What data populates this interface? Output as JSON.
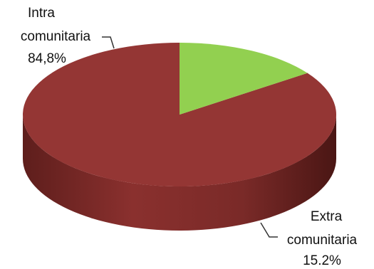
{
  "chart_data": {
    "type": "pie",
    "title": "",
    "slices": [
      {
        "name_lines": [
          "Intra",
          "comunitaria"
        ],
        "value": 84.8,
        "label": "84,8%",
        "color": "#943634",
        "side_color": "#7A2A28"
      },
      {
        "name_lines": [
          "Extra",
          "comunitaria"
        ],
        "value": 15.2,
        "label": "15.2%",
        "color": "#92D050",
        "side_color": "#4F7A2E"
      }
    ],
    "style": "3d-tilted"
  }
}
